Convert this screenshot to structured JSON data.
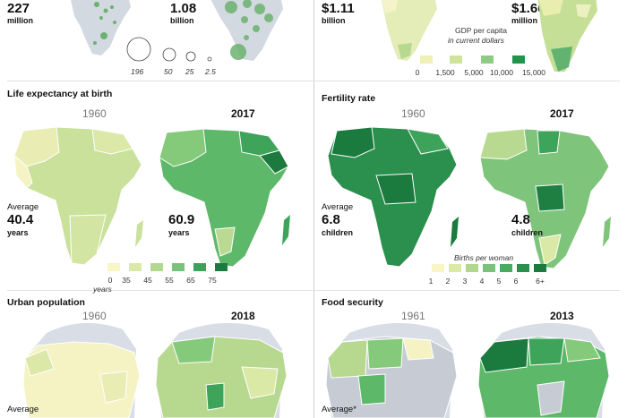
{
  "top": {
    "left": {
      "value1": "227",
      "unit1": "million",
      "value2": "1.08",
      "unit2": "billion"
    },
    "bubble_legend": {
      "labels": [
        "196",
        "50",
        "25",
        "2.5"
      ]
    },
    "right": {
      "value1": "$1.11",
      "unit1": "billion",
      "value2": "$1.66",
      "unit2": "million"
    },
    "gdp_legend": {
      "line1": "GDP per capita",
      "line2": "in current dollars",
      "ticks": [
        "0",
        "1,500",
        "5,000",
        "10,000",
        "15,000"
      ]
    }
  },
  "panels": [
    {
      "title": "Life expectancy at birth",
      "year1": "1960",
      "year2": "2017",
      "avg_label": "Average",
      "avg1": "40.4",
      "avg1_unit": "years",
      "avg2": "60.9",
      "avg2_unit": "years",
      "legend_ticks": [
        "0",
        "35",
        "45",
        "55",
        "65",
        "75"
      ],
      "legend_note": "years"
    },
    {
      "title": "Fertility rate",
      "year1": "1960",
      "year2": "2017",
      "avg_label": "Average",
      "avg1": "6.8",
      "avg1_unit": "children",
      "avg2": "4.8",
      "avg2_unit": "children",
      "legend_title": "Births per woman",
      "legend_ticks": [
        "1",
        "2",
        "3",
        "4",
        "5",
        "6",
        "6+"
      ]
    },
    {
      "title": "Urban population",
      "year1": "1960",
      "year2": "2018",
      "avg_label": "Average"
    },
    {
      "title": "Food security",
      "year1": "1961",
      "year2": "2013",
      "avg_label": "Average*"
    }
  ],
  "colors": {
    "scale": [
      "#f7f6c4",
      "#dbe9a6",
      "#b1d88e",
      "#79c27c",
      "#3ca25a",
      "#1b7a3e"
    ],
    "ocean_shadow": "#d9dde6",
    "no_data": "#c7ccd4"
  }
}
